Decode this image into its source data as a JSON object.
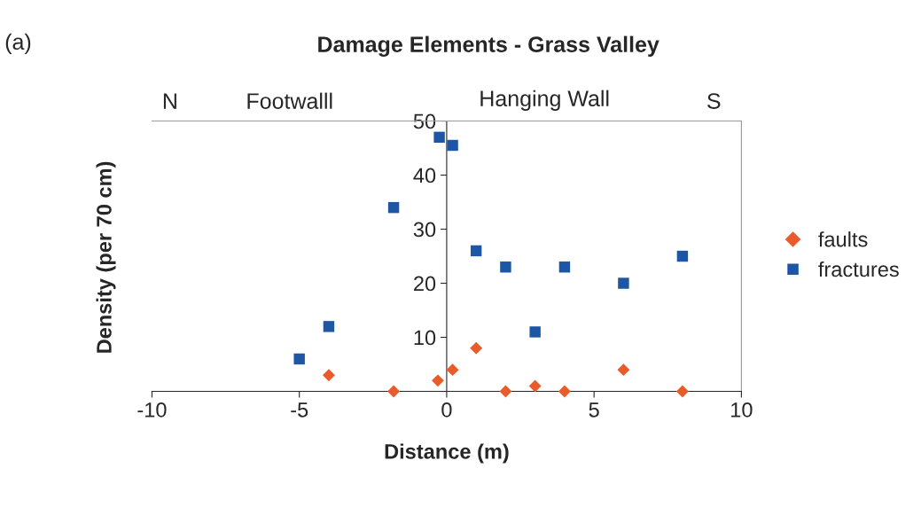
{
  "chart_data": {
    "type": "scatter",
    "title": "Damage Elements - Grass Valley",
    "xlabel": "Distance (m)",
    "ylabel": "Density (per 70 cm)",
    "series": [
      {
        "name": "faults",
        "color": "#ea5b2c",
        "marker": "diamond",
        "x": [
          -4,
          -1.8,
          -0.3,
          0.2,
          1,
          2,
          3,
          4,
          6,
          8
        ],
        "values": [
          3,
          0,
          2,
          4,
          8,
          0,
          1,
          0,
          4,
          0
        ]
      },
      {
        "name": "fractures",
        "color": "#1c56a5",
        "marker": "square",
        "x": [
          -5,
          -4,
          -1.8,
          -0.25,
          0.2,
          1,
          2,
          3,
          4,
          6,
          8
        ],
        "values": [
          6,
          12,
          34,
          47,
          45.5,
          26,
          23,
          11,
          23,
          20,
          25
        ]
      }
    ],
    "xlim": [
      -10,
      10
    ],
    "xticks": [
      -10,
      -5,
      0,
      5,
      10
    ],
    "ylim": [
      0,
      50
    ],
    "yticks": [
      {
        "value": 0,
        "label": null
      },
      10,
      20,
      30,
      40,
      50
    ],
    "grid": false,
    "legend": "right",
    "annotations": [
      "(a)",
      "N",
      "Footwalll",
      "Hanging Wall",
      "S"
    ]
  }
}
